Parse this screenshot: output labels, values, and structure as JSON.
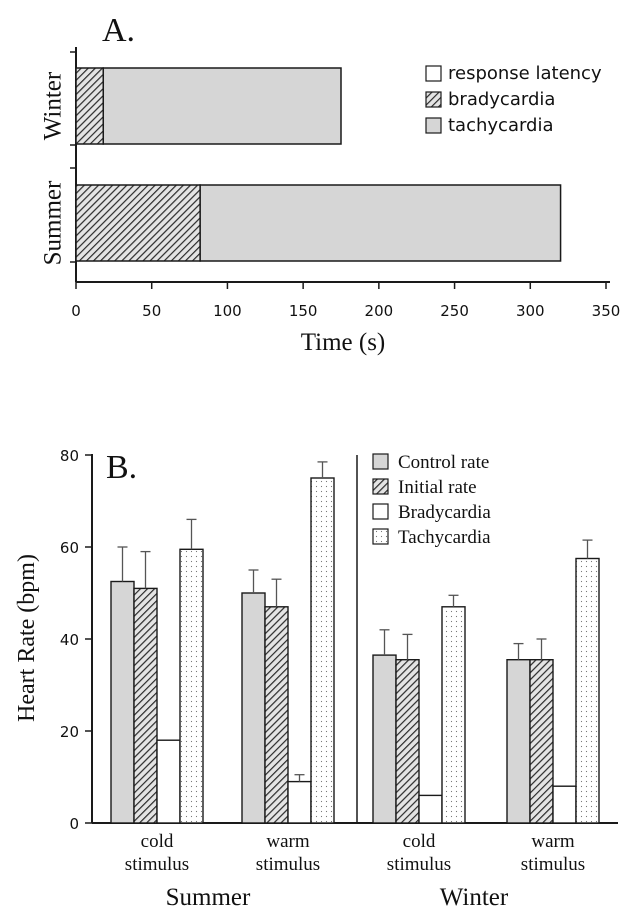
{
  "chart_data": [
    {
      "panel_label": "A.",
      "type": "bar",
      "orientation": "horizontal",
      "stacked": true,
      "categories": [
        "Winter",
        "Summer"
      ],
      "series": [
        {
          "name": "response latency",
          "values": [
            0,
            0
          ],
          "pattern": "open"
        },
        {
          "name": "bradycardia",
          "values": [
            18,
            82
          ],
          "pattern": "hatched"
        },
        {
          "name": "tachycardia",
          "values": [
            157,
            238
          ],
          "pattern": "grey"
        }
      ],
      "x_ticks": [
        "0",
        "50",
        "100",
        "150",
        "200",
        "250",
        "300",
        "350"
      ],
      "xlabel": "Time (s)",
      "xlim": [
        0,
        350
      ],
      "legend_position": "top-right"
    },
    {
      "panel_label": "B.",
      "type": "bar",
      "groups": [
        {
          "name": "Summer",
          "categories": [
            "cold\nstimulus",
            "warm\nstimulus"
          ]
        },
        {
          "name": "Winter",
          "categories": [
            "cold\nstimulus",
            "warm\nstimulus"
          ]
        }
      ],
      "series": [
        {
          "name": "Control rate",
          "values": [
            52.5,
            50,
            36.5,
            35.5
          ],
          "errors": [
            7.5,
            5,
            5.5,
            3.5
          ],
          "pattern": "grey"
        },
        {
          "name": "Initial rate",
          "values": [
            51,
            47,
            35.5,
            35.5
          ],
          "errors": [
            8,
            6,
            5.5,
            4.5
          ],
          "pattern": "hatched"
        },
        {
          "name": "Bradycardia",
          "values": [
            18,
            9,
            6,
            8
          ],
          "errors": [
            0,
            1.5,
            0,
            0
          ],
          "pattern": "open"
        },
        {
          "name": "Tachycardia",
          "values": [
            59.5,
            75,
            47,
            57.5
          ],
          "errors": [
            6.5,
            3.5,
            2.5,
            4
          ],
          "pattern": "dotted"
        }
      ],
      "y_ticks": [
        "0",
        "20",
        "40",
        "60",
        "80"
      ],
      "ylabel": "Heart Rate (bpm)",
      "ylim": [
        0,
        80
      ],
      "legend_position": "top-right"
    }
  ]
}
